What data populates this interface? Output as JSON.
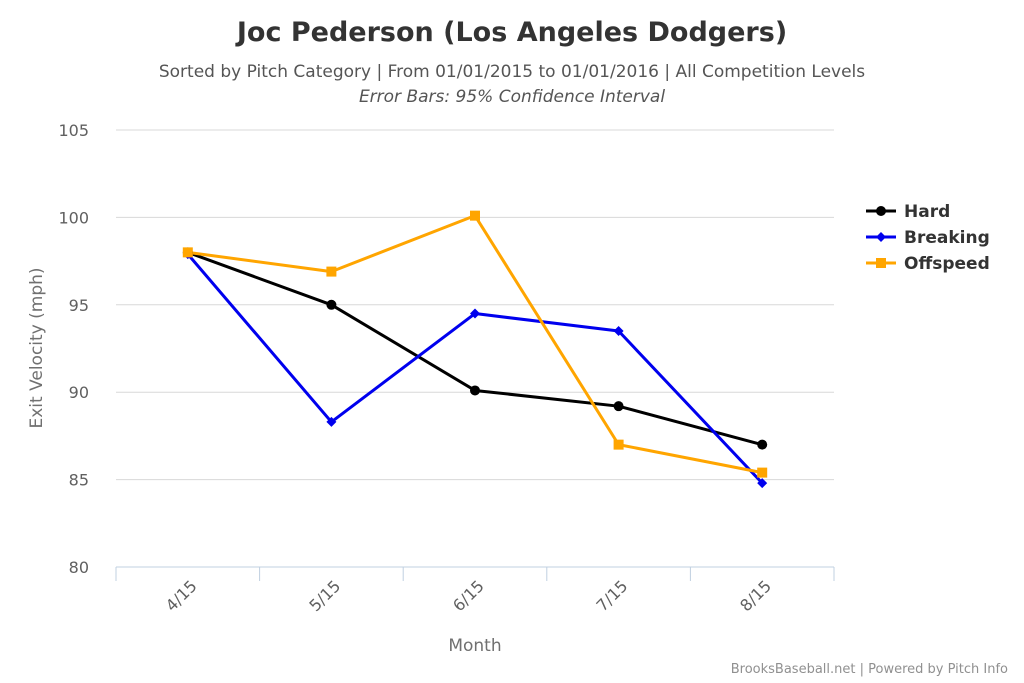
{
  "chart_data": {
    "type": "line",
    "title": "Joc Pederson (Los Angeles Dodgers)",
    "subtitle": "Sorted by Pitch Category | From 01/01/2015 to 01/01/2016 | All Competition Levels",
    "subtitle2": "Error Bars: 95% Confidence Interval",
    "xlabel": "Month",
    "ylabel": "Exit Velocity (mph)",
    "categories": [
      "4/15",
      "5/15",
      "6/15",
      "7/15",
      "8/15"
    ],
    "ylim": [
      80,
      105
    ],
    "yticks": [
      80,
      85,
      90,
      95,
      100,
      105
    ],
    "grid": true,
    "legend_position": "right",
    "series": [
      {
        "name": "Hard",
        "color": "#000000",
        "marker": "circle",
        "values": [
          98.0,
          95.0,
          90.1,
          89.2,
          87.0
        ]
      },
      {
        "name": "Breaking",
        "color": "#0000ee",
        "marker": "diamond",
        "values": [
          97.9,
          88.3,
          94.5,
          93.5,
          84.8
        ]
      },
      {
        "name": "Offspeed",
        "color": "#ffa500",
        "marker": "square",
        "values": [
          98.0,
          96.9,
          100.1,
          87.0,
          85.4
        ]
      }
    ],
    "credits": "BrooksBaseball.net | Powered by Pitch Info"
  }
}
